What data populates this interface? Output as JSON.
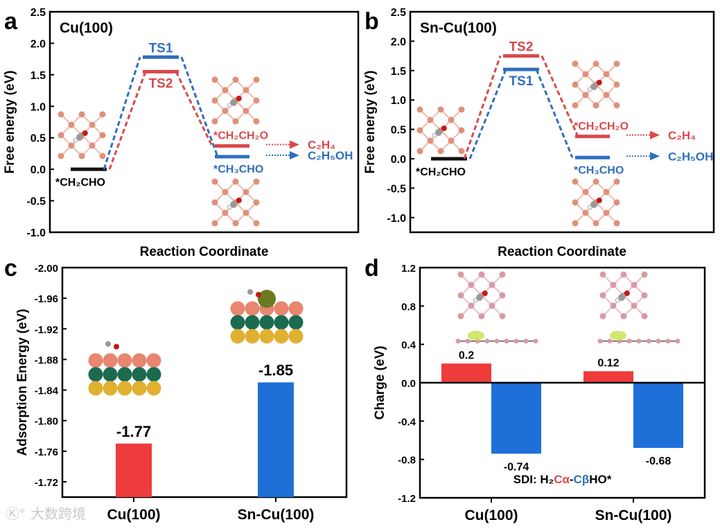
{
  "colors": {
    "red": "#d9494b",
    "blue": "#2f6fbf",
    "black": "#111111",
    "bar_red": "#ee3b3b",
    "bar_blue": "#1f6fd9"
  },
  "watermark": "大数跨境",
  "chart_data": [
    {
      "panel": "a",
      "type": "energy-diagram",
      "title": "Cu(100)",
      "xlabel": "Reaction Coordinate",
      "ylabel": "Free energy (eV)",
      "ylim": [
        -1.0,
        2.5
      ],
      "yticks": [
        "2.5",
        "2.0",
        "1.5",
        "1.0",
        "0.5",
        "0.0",
        "-0.5",
        "-1.0"
      ],
      "initial": {
        "label": "*CH₂CHO",
        "value": 0.0
      },
      "paths": [
        {
          "name": "TS1 path",
          "color": "blue",
          "ts_label": "TS1",
          "ts_value": 1.78,
          "ts_label_pos": "above",
          "product_label": "*CH₃CHO",
          "product_value": 0.2,
          "product_label_pos": "below",
          "final": "C₂H₅OH"
        },
        {
          "name": "TS2 path",
          "color": "red",
          "ts_label": "TS2",
          "ts_value": 1.55,
          "ts_label_pos": "below",
          "product_label": "*CH₂CH₂O",
          "product_value": 0.37,
          "product_label_pos": "above",
          "final": "C₂H₄"
        }
      ]
    },
    {
      "panel": "b",
      "type": "energy-diagram",
      "title": "Sn-Cu(100)",
      "xlabel": "Reaction Coordinate",
      "ylabel": "Free energy (eV)",
      "ylim": [
        -1.25,
        2.5
      ],
      "yticks": [
        "2.5",
        "2.0",
        "1.5",
        "1.0",
        "0.5",
        "0.0",
        "-0.5",
        "-1.0"
      ],
      "initial": {
        "label": "*CH₂CHO",
        "value": 0.0
      },
      "paths": [
        {
          "name": "TS2 path",
          "color": "red",
          "ts_label": "TS2",
          "ts_value": 1.75,
          "ts_label_pos": "above",
          "product_label": "*CH₂CH₂O",
          "product_value": 0.38,
          "product_label_pos": "above",
          "final": "C₂H₄"
        },
        {
          "name": "TS1 path",
          "color": "blue",
          "ts_label": "TS1",
          "ts_value": 1.52,
          "ts_label_pos": "below",
          "product_label": "*CH₃CHO",
          "product_value": 0.02,
          "product_label_pos": "below",
          "final": "C₂H₅OH"
        }
      ]
    },
    {
      "panel": "c",
      "type": "bar",
      "ylabel": "Adsorption Energy (eV)",
      "ylim": [
        -2.0,
        -1.7
      ],
      "y_inverted": true,
      "yticks": [
        "-2.00",
        "-1.96",
        "-1.92",
        "-1.88",
        "-1.84",
        "-1.80",
        "-1.76",
        "-1.72"
      ],
      "categories": [
        "Cu(100)",
        "Sn-Cu(100)"
      ],
      "values": [
        -1.77,
        -1.85
      ],
      "value_labels": [
        "-1.77",
        "-1.85"
      ],
      "bar_colors": [
        "bar_red",
        "bar_blue"
      ]
    },
    {
      "panel": "d",
      "type": "bar",
      "ylabel": "Charge (eV)",
      "ylim": [
        -1.2,
        1.2
      ],
      "yticks": [
        "1.2",
        "0.8",
        "0.4",
        "0.0",
        "-0.4",
        "-0.8",
        "-1.2"
      ],
      "categories": [
        "Cu(100)",
        "Sn-Cu(100)"
      ],
      "series": [
        {
          "name": "Cα",
          "color": "bar_red",
          "values": [
            0.2,
            0.12
          ],
          "value_labels": [
            "0.2",
            "0.12"
          ]
        },
        {
          "name": "Cβ",
          "color": "bar_blue",
          "values": [
            -0.74,
            -0.68
          ],
          "value_labels": [
            "-0.74",
            "-0.68"
          ]
        }
      ],
      "annotation": {
        "prefix": "SDI: H₂",
        "c_alpha": "Cα",
        "dash": "-",
        "c_beta": "Cβ",
        "suffix": "HO*"
      }
    }
  ]
}
